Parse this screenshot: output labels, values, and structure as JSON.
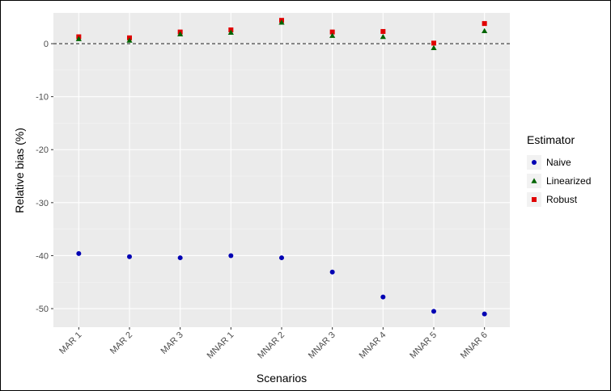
{
  "chart_data": {
    "type": "scatter",
    "xlabel": "Scenarios",
    "ylabel": "Relative bias (%)",
    "categories": [
      "MAR 1",
      "MAR 2",
      "MAR 3",
      "MNAR 1",
      "MNAR 2",
      "MNAR 3",
      "MNAR 4",
      "MNAR 5",
      "MNAR 6"
    ],
    "ylim": [
      -53.5,
      5.8
    ],
    "yticks": [
      0,
      -10,
      -20,
      -30,
      -40,
      -50
    ],
    "reference_line": 0,
    "grid": true,
    "legend": {
      "title": "Estimator",
      "position": "right"
    },
    "series": [
      {
        "name": "Naive",
        "marker": "circle",
        "color": "#0000b3",
        "values": [
          -39.6,
          -40.2,
          -40.4,
          -40.0,
          -40.4,
          -43.1,
          -47.8,
          -50.5,
          -51.0
        ]
      },
      {
        "name": "Linearized",
        "marker": "triangle",
        "color": "#006400",
        "values": [
          0.9,
          0.6,
          1.8,
          2.1,
          4.0,
          1.5,
          1.3,
          -0.8,
          2.4
        ]
      },
      {
        "name": "Robust",
        "marker": "square",
        "color": "#e00000",
        "values": [
          1.3,
          1.1,
          2.2,
          2.6,
          4.4,
          2.2,
          2.3,
          0.1,
          3.8
        ]
      }
    ]
  }
}
